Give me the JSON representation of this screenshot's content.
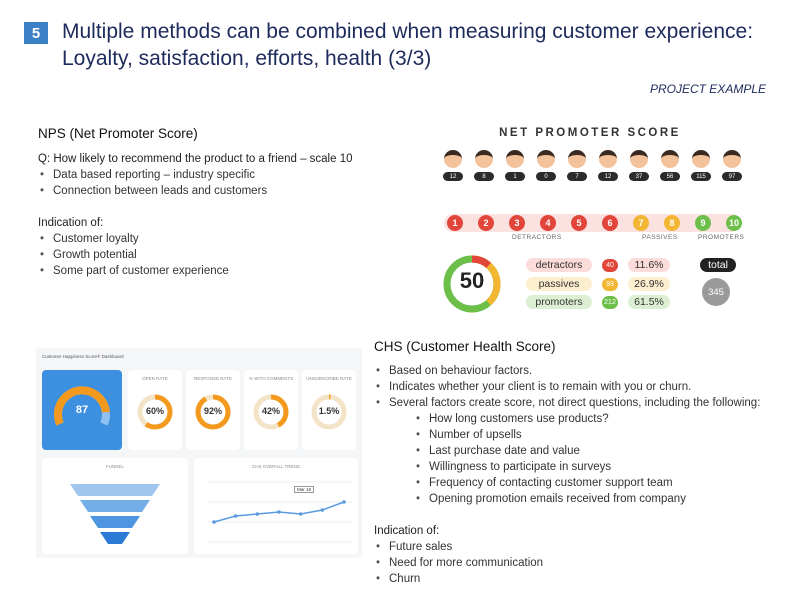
{
  "slide": {
    "number": "5",
    "title_line1": "Multiple methods can be combined when measuring customer experience:",
    "title_line2": "Loyalty, satisfaction, efforts, health (3/3)",
    "project_label": "PROJECT EXAMPLE"
  },
  "nps": {
    "heading": "NPS (Net Promoter Score)",
    "question": "Q: How likely to recommend the product to a friend – scale 10",
    "bullets": [
      "Data based reporting – industry specific",
      "Connection between leads and customers"
    ],
    "indication_heading": "Indication of:",
    "indication_bullets": [
      "Customer loyalty",
      "Growth potential",
      "Some part of customer experience"
    ]
  },
  "nps_graphic": {
    "title": "NET PROMOTER SCORE",
    "face_counts": [
      "12",
      "8",
      "1",
      "0",
      "7",
      "12",
      "37",
      "56",
      "115",
      "97"
    ],
    "scale": [
      {
        "n": "1",
        "color": "#e2463b"
      },
      {
        "n": "2",
        "color": "#e2463b"
      },
      {
        "n": "3",
        "color": "#e2463b"
      },
      {
        "n": "4",
        "color": "#e2463b"
      },
      {
        "n": "5",
        "color": "#e2463b"
      },
      {
        "n": "6",
        "color": "#e2463b"
      },
      {
        "n": "7",
        "color": "#f2b632"
      },
      {
        "n": "8",
        "color": "#f2b632"
      },
      {
        "n": "9",
        "color": "#6cc04a"
      },
      {
        "n": "10",
        "color": "#6cc04a"
      }
    ],
    "scale_labels": {
      "detractors": "DETRACTORS",
      "passives": "PASSIVES",
      "promoters": "PROMOTERS"
    },
    "score": "50",
    "breakdown": [
      {
        "label": "detractors",
        "count": "40",
        "pct": "11.6%",
        "bg": "#fbdcda",
        "count_color": "#e2463b"
      },
      {
        "label": "passives",
        "count": "93",
        "pct": "26.9%",
        "bg": "#fcefcf",
        "count_color": "#f2b632"
      },
      {
        "label": "promoters",
        "count": "212",
        "pct": "61.5%",
        "bg": "#dcefd3",
        "count_color": "#6cc04a"
      }
    ],
    "total_label": "total",
    "total_value": "345",
    "colors": {
      "detractor": "#e2463b",
      "passive": "#f2b632",
      "promoter": "#6cc04a"
    }
  },
  "chs": {
    "heading": "CHS (Customer Health Score)",
    "bullets": [
      "Based on behaviour factors.",
      "Indicates whether your client is to  remain with you or churn.",
      "Several factors create score, not direct questions, including the following:"
    ],
    "sub_bullets": [
      "How long customers use products?",
      "Number of upsells",
      "Last purchase date and value",
      "Willingness to participate in surveys",
      "Frequency of contacting customer support team",
      "Opening promotion emails received from company"
    ],
    "indication_heading": "Indication of:",
    "indication_bullets": [
      "Future sales",
      "Need for more communication",
      "Churn"
    ]
  },
  "dashboard": {
    "title": "Customer Happiness Score® Dashboard",
    "main_value": "87",
    "kpis": [
      {
        "label": "OPEN RATE",
        "value": "60%",
        "pct": 60
      },
      {
        "label": "RESPONSE RATE",
        "value": "92%",
        "pct": 92
      },
      {
        "label": "% WITH COMMENTS",
        "value": "42%",
        "pct": 42
      },
      {
        "label": "UNSUBSCRIBE RATE",
        "value": "1.5%",
        "pct": 1.5
      }
    ],
    "funnel_title": "FUNNEL",
    "trend_title": "CHS OVERALL TREND",
    "trend_values": [
      60,
      66,
      68,
      70,
      68,
      72,
      80
    ],
    "trend_tag": "Mar 18"
  }
}
